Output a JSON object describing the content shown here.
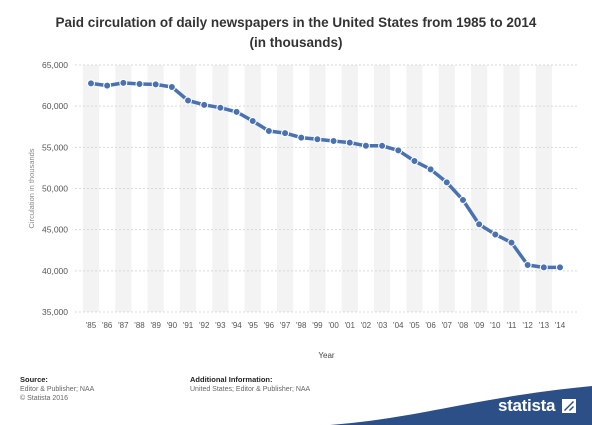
{
  "title_line1": "Paid circulation of daily newspapers in the United States from 1985 to 2014",
  "title_line2": "(in thousands)",
  "footer": {
    "source_heading": "Source:",
    "source_line": "Editor & Publisher; NAA",
    "copyright": "© Statista 2016",
    "info_heading": "Additional Information:",
    "info_line": "United States; Editor & Publisher; NAA"
  },
  "brand": "statista",
  "colors": {
    "line": "#4a72b0",
    "band": "#2b4f86",
    "grid": "#d8d8d8",
    "stripe": "#f3f3f3"
  },
  "chart_data": {
    "type": "line",
    "xlabel": "Year",
    "ylabel": "Circulation in thousands",
    "categories": [
      "'85",
      "'86",
      "'87",
      "'88",
      "'89",
      "'90",
      "'91",
      "'92",
      "'93",
      "'94",
      "'95",
      "'96",
      "'97",
      "'98",
      "'99",
      "'00",
      "'01",
      "'02",
      "'03",
      "'04",
      "'05",
      "'06",
      "'07",
      "'08",
      "'09",
      "'10",
      "'11",
      "'12",
      "'13",
      "'14"
    ],
    "values": [
      62766,
      62502,
      62826,
      62695,
      62649,
      62328,
      60687,
      60164,
      59812,
      59305,
      58193,
      56983,
      56728,
      56182,
      55979,
      55773,
      55578,
      55186,
      55185,
      54626,
      53345,
      52329,
      50742,
      48597,
      45653,
      44420,
      43432,
      40712,
      40420,
      40420
    ],
    "ylim": [
      35000,
      65000
    ],
    "yticks": [
      "35,000",
      "40,000",
      "45,000",
      "50,000",
      "55,000",
      "60,000",
      "65,000"
    ],
    "grid": true,
    "legend": "none"
  }
}
